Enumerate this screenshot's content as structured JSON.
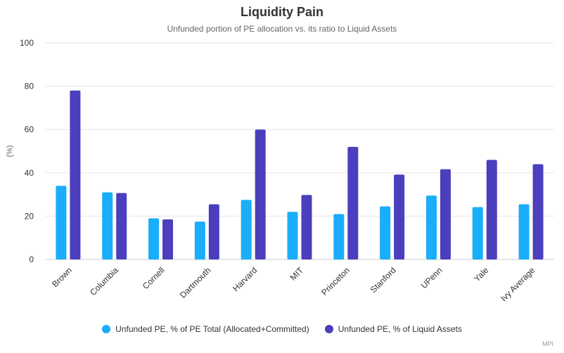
{
  "chart_data": {
    "type": "bar",
    "title": "Liquidity Pain",
    "subtitle": "Unfunded portion of PE allocation vs. its ratio to Liquid Assets",
    "ylabel": "(%)",
    "xlabel": "",
    "ylim": [
      0,
      100
    ],
    "yticks": [
      0,
      20,
      40,
      60,
      80,
      100
    ],
    "grid": true,
    "legend_position": "bottom",
    "categories": [
      "Brown",
      "Columbia",
      "Cornell",
      "Dartmouth",
      "Harvard",
      "MIT",
      "Princeton",
      "Stanford",
      "UPenn",
      "Yale",
      "Ivy Average"
    ],
    "series": [
      {
        "name": "Unfunded PE, % of PE Total (Allocated+Committed)",
        "color": "#1aadf9",
        "values": [
          34,
          31,
          19,
          17.5,
          27.5,
          22,
          21,
          24.5,
          29.5,
          24.2,
          25.5
        ]
      },
      {
        "name": "Unfunded PE, % of Liquid Assets",
        "color": "#4b3fbd",
        "values": [
          78,
          30.7,
          18.5,
          25.5,
          60,
          29.8,
          52,
          39.2,
          41.7,
          46,
          44
        ]
      }
    ]
  },
  "credit": "MPI"
}
